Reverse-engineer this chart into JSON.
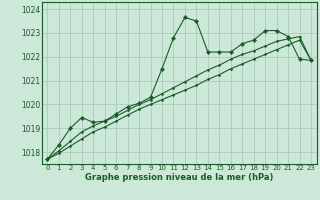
{
  "bg_color": "#cce8d8",
  "grid_color": "#aaccbb",
  "line_color": "#1a5c28",
  "marker_color": "#1a5c28",
  "xlabel": "Graphe pression niveau de la mer (hPa)",
  "xlabel_color": "#1a5c28",
  "ylim": [
    1017.5,
    1024.3
  ],
  "xlim": [
    -0.5,
    23.5
  ],
  "yticks": [
    1018,
    1019,
    1020,
    1021,
    1022,
    1023,
    1024
  ],
  "xticks": [
    0,
    1,
    2,
    3,
    4,
    5,
    6,
    7,
    8,
    9,
    10,
    11,
    12,
    13,
    14,
    15,
    16,
    17,
    18,
    19,
    20,
    21,
    22,
    23
  ],
  "series1": {
    "x": [
      0,
      1,
      2,
      3,
      4,
      5,
      6,
      7,
      8,
      9,
      10,
      11,
      12,
      13,
      14,
      15,
      16,
      17,
      18,
      19,
      20,
      21,
      22,
      23
    ],
    "y": [
      1017.7,
      1018.3,
      1019.0,
      1019.45,
      1019.25,
      1019.3,
      1019.6,
      1019.9,
      1020.05,
      1020.3,
      1021.5,
      1022.8,
      1023.65,
      1023.5,
      1022.2,
      1022.2,
      1022.2,
      1022.55,
      1022.7,
      1023.1,
      1023.1,
      1022.85,
      1021.9,
      1021.85
    ]
  },
  "series2": {
    "x": [
      0,
      1,
      2,
      3,
      4,
      5,
      6,
      7,
      8,
      9,
      10,
      11,
      12,
      13,
      14,
      15,
      16,
      17,
      18,
      19,
      20,
      21,
      22,
      23
    ],
    "y": [
      1017.7,
      1018.05,
      1018.45,
      1018.85,
      1019.1,
      1019.3,
      1019.5,
      1019.75,
      1020.0,
      1020.2,
      1020.45,
      1020.7,
      1020.95,
      1021.2,
      1021.45,
      1021.65,
      1021.9,
      1022.1,
      1022.25,
      1022.45,
      1022.65,
      1022.75,
      1022.85,
      1021.85
    ]
  },
  "series3": {
    "x": [
      0,
      1,
      2,
      3,
      4,
      5,
      6,
      7,
      8,
      9,
      10,
      11,
      12,
      13,
      14,
      15,
      16,
      17,
      18,
      19,
      20,
      21,
      22,
      23
    ],
    "y": [
      1017.7,
      1017.95,
      1018.25,
      1018.55,
      1018.85,
      1019.05,
      1019.3,
      1019.55,
      1019.8,
      1020.0,
      1020.2,
      1020.4,
      1020.6,
      1020.8,
      1021.05,
      1021.25,
      1021.5,
      1021.7,
      1021.9,
      1022.1,
      1022.3,
      1022.5,
      1022.7,
      1021.85
    ]
  }
}
